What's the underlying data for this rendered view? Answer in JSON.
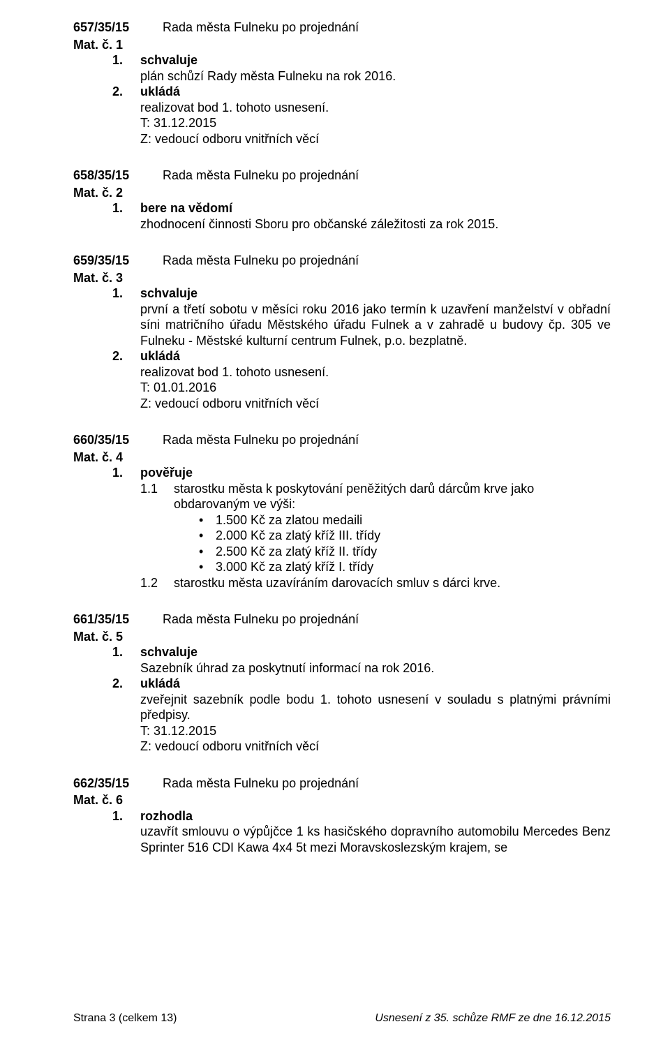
{
  "s1": {
    "uid": "657/35/15",
    "rada": "Rada města Fulneku po projednání",
    "mat": "Mat. č. 1",
    "i1n": "1.",
    "i1lbl": "schvaluje",
    "i1t": "plán schůzí Rady města Fulneku na rok 2016.",
    "i2n": "2.",
    "i2lbl": "ukládá",
    "i2t": "realizovat bod 1. tohoto usnesení.",
    "deadline": "T: 31.12.2015",
    "z": "Z: vedoucí odboru vnitřních věcí"
  },
  "s2": {
    "uid": "658/35/15",
    "rada": "Rada města Fulneku po projednání",
    "mat": "Mat. č. 2",
    "i1n": "1.",
    "i1lbl": "bere na vědomí",
    "i1t": "zhodnocení činnosti Sboru pro občanské záležitosti za rok 2015."
  },
  "s3": {
    "uid": "659/35/15",
    "rada": "Rada města Fulneku po projednání",
    "mat": "Mat. č. 3",
    "i1n": "1.",
    "i1lbl": "schvaluje",
    "i1t": "první a třetí sobotu v měsíci roku 2016 jako termín k uzavření manželství v obřadní síni matričního úřadu Městského úřadu Fulnek a v zahradě u budovy čp. 305 ve Fulneku - Městské kulturní centrum Fulnek, p.o. bezplatně.",
    "i2n": "2.",
    "i2lbl": "ukládá",
    "i2t": "realizovat bod 1. tohoto usnesení.",
    "deadline": "T: 01.01.2016",
    "z": "Z: vedoucí odboru vnitřních věcí"
  },
  "s4": {
    "uid": "660/35/15",
    "rada": "Rada města Fulneku po projednání",
    "mat": "Mat. č. 4",
    "i1n": "1.",
    "i1lbl": "pověřuje",
    "sub11n": "1.1",
    "sub11t": "starostku města k poskytování peněžitých darů dárcům krve jako obdarovaným ve výši:",
    "b1": "1.500 Kč za zlatou medaili",
    "b2": "2.000 Kč za zlatý kříž III. třídy",
    "b3": "2.500 Kč za zlatý kříž II. třídy",
    "b4": "3.000 Kč za zlatý kříž I. třídy",
    "sub12n": "1.2",
    "sub12t": "starostku města uzavíráním darovacích smluv s dárci krve."
  },
  "s5": {
    "uid": "661/35/15",
    "rada": "Rada města Fulneku po projednání",
    "mat": "Mat. č. 5",
    "i1n": "1.",
    "i1lbl": "schvaluje",
    "i1t": "Sazebník úhrad za poskytnutí informací na rok 2016.",
    "i2n": "2.",
    "i2lbl": "ukládá",
    "i2t": "zveřejnit sazebník podle bodu 1. tohoto usnesení v souladu s platnými právními předpisy.",
    "deadline": "T: 31.12.2015",
    "z": "Z: vedoucí odboru vnitřních věcí"
  },
  "s6": {
    "uid": "662/35/15",
    "rada": "Rada města Fulneku po projednání",
    "mat": "Mat. č. 6",
    "i1n": "1.",
    "i1lbl": "rozhodla",
    "i1t": "uzavřít smlouvu o výpůjčce 1 ks hasičského dopravního automobilu Mercedes Benz Sprinter 516 CDI Kawa 4x4 5t mezi Moravskoslezským krajem, se"
  },
  "footer": {
    "left": "Strana 3 (celkem 13)",
    "right": "Usnesení z 35. schůze RMF ze dne 16.12.2015"
  }
}
